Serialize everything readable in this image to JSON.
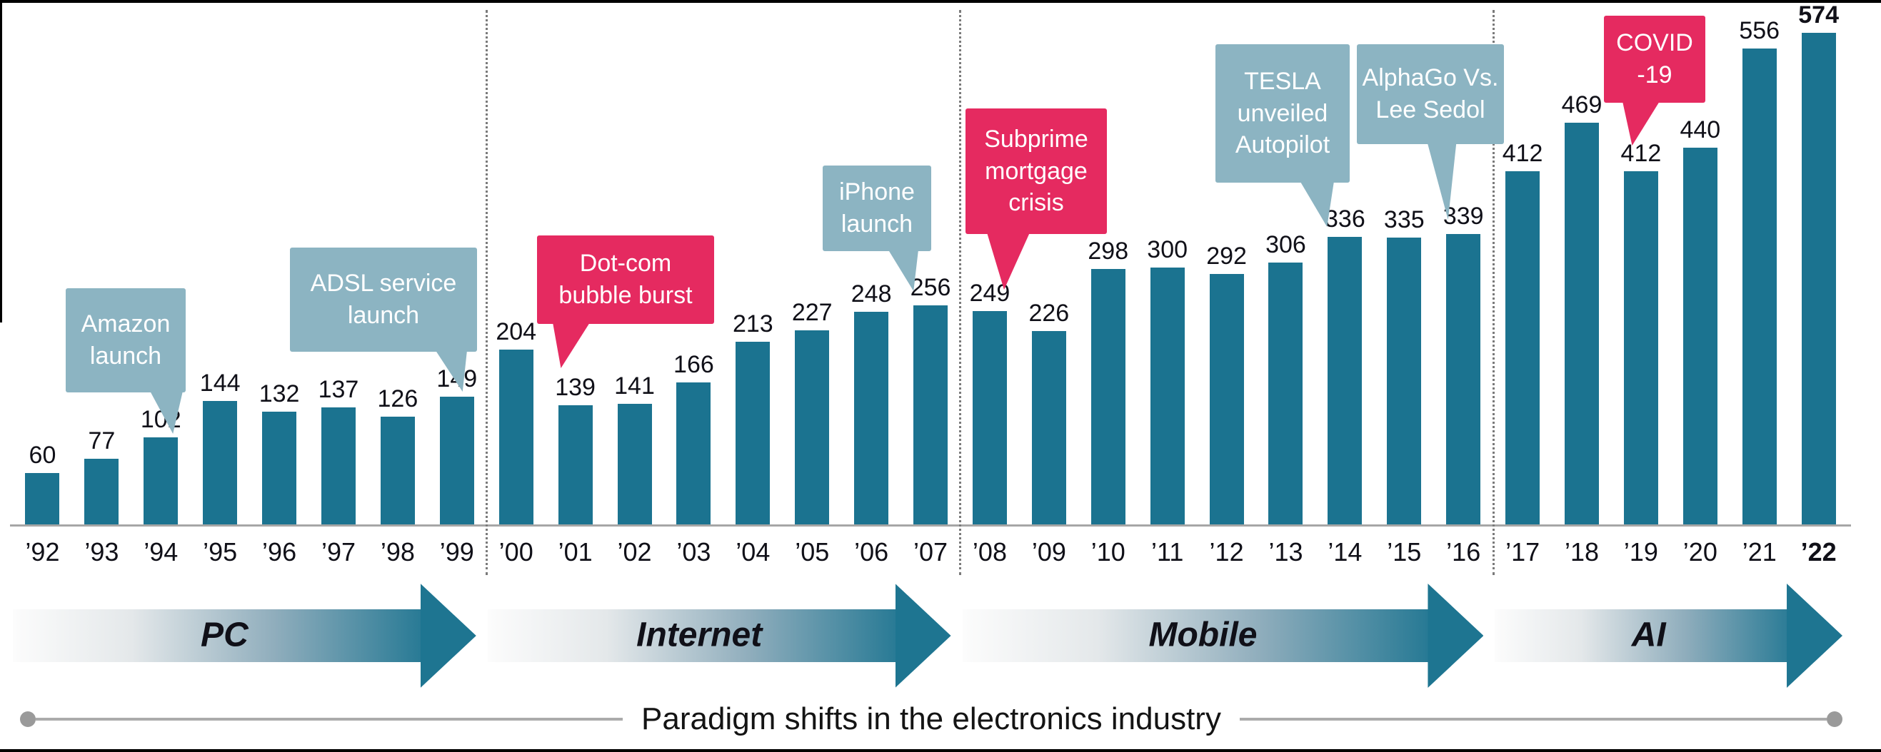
{
  "palette": {
    "bar": "#1b7390",
    "callout_blue": "#8cb4c2",
    "callout_pink": "#e52a60",
    "arrow_teal": "#1e7591",
    "axis_line": "#a6a6a6",
    "divider": "#7a7a7a",
    "text": "#101018",
    "border": "#000000"
  },
  "caption": "Paradigm shifts in the electronics industry",
  "chart_data": {
    "type": "bar",
    "categories": [
      "’92",
      "’93",
      "’94",
      "’95",
      "’96",
      "’97",
      "’98",
      "’99",
      "’00",
      "’01",
      "’02",
      "’03",
      "’04",
      "’05",
      "’06",
      "’07",
      "’08",
      "’09",
      "’10",
      "’11",
      "’12",
      "’13",
      "’14",
      "’15",
      "’16",
      "’17",
      "’18",
      "’19",
      "’20",
      "’21",
      "’22"
    ],
    "values": [
      60,
      77,
      102,
      144,
      132,
      137,
      126,
      149,
      204,
      139,
      141,
      166,
      213,
      227,
      248,
      256,
      249,
      226,
      298,
      300,
      292,
      306,
      336,
      335,
      339,
      412,
      469,
      412,
      440,
      556,
      574
    ],
    "ylim": [
      0,
      600
    ],
    "grid": false,
    "legend": false,
    "value_labels_shown": true,
    "last_bar_emphasized": true,
    "eras": [
      {
        "label": "PC",
        "years": 8
      },
      {
        "label": "Internet",
        "years": 8
      },
      {
        "label": "Mobile",
        "years": 9
      },
      {
        "label": "AI",
        "years": 6
      }
    ],
    "era_boundaries_after": [
      7,
      15,
      24
    ],
    "annotations": [
      {
        "id": "amazon",
        "lines": [
          "Amazon",
          "launch"
        ],
        "color": "blue",
        "target_year": "’94"
      },
      {
        "id": "adsl",
        "lines": [
          "ADSL service",
          "launch"
        ],
        "color": "blue",
        "target_year": "’99"
      },
      {
        "id": "dotcom",
        "lines": [
          "Dot-com",
          "bubble burst"
        ],
        "color": "pink",
        "target_year": "’01"
      },
      {
        "id": "iphone",
        "lines": [
          "iPhone",
          "launch"
        ],
        "color": "blue",
        "target_year": "’07"
      },
      {
        "id": "subprime",
        "lines": [
          "Subprime",
          "mortgage",
          "crisis"
        ],
        "color": "pink",
        "target_year": "’08"
      },
      {
        "id": "tesla",
        "lines": [
          "TESLA",
          "unveiled",
          "Autopilot"
        ],
        "color": "blue",
        "target_year": "’14"
      },
      {
        "id": "alphago",
        "lines": [
          "AlphaGo Vs.",
          "Lee Sedol"
        ],
        "color": "blue",
        "target_year": "’16"
      },
      {
        "id": "covid",
        "lines": [
          "COVID",
          "-19"
        ],
        "color": "pink",
        "target_year": "’19"
      }
    ]
  }
}
